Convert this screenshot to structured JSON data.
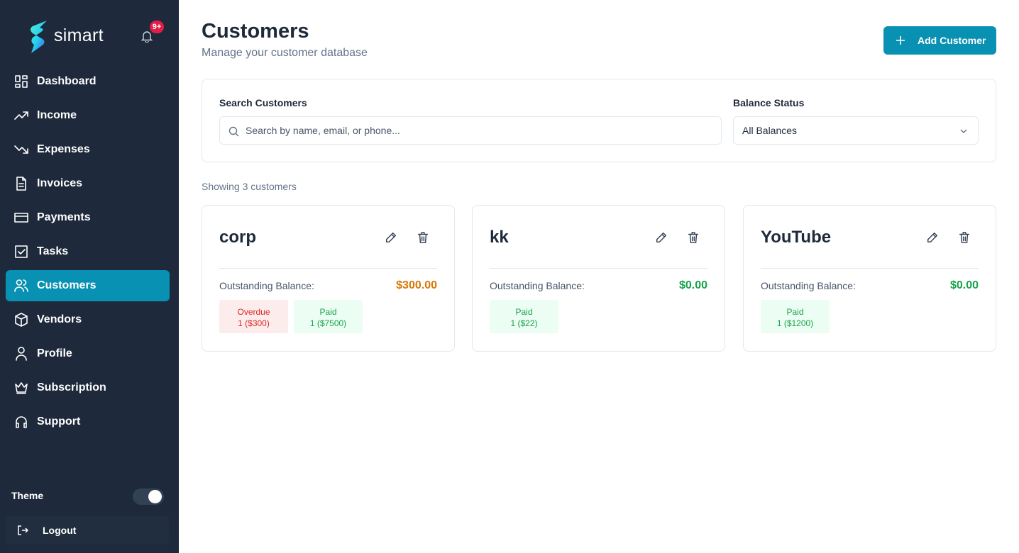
{
  "sidebar": {
    "brand": "simart",
    "badge": "9+",
    "nav": [
      {
        "label": "Dashboard"
      },
      {
        "label": "Income"
      },
      {
        "label": "Expenses"
      },
      {
        "label": "Invoices"
      },
      {
        "label": "Payments"
      },
      {
        "label": "Tasks"
      },
      {
        "label": "Customers",
        "active": true
      },
      {
        "label": "Vendors"
      },
      {
        "label": "Profile"
      },
      {
        "label": "Subscription"
      },
      {
        "label": "Support"
      }
    ],
    "theme_label": "Theme",
    "logout": "Logout"
  },
  "header": {
    "title": "Customers",
    "subtitle": "Manage your customer database",
    "add_button": "Add Customer"
  },
  "filters": {
    "search_label": "Search Customers",
    "search_placeholder": "Search by name, email, or phone...",
    "balance_label": "Balance Status",
    "balance_value": "All Balances"
  },
  "summary": "Showing 3 customers",
  "customers": [
    {
      "name": "corp",
      "balance_label": "Outstanding Balance:",
      "balance": "$300.00",
      "balance_tone": "orange",
      "badges": [
        {
          "status": "Overdue",
          "detail": "1 ($300)",
          "tone": "red"
        },
        {
          "status": "Paid",
          "detail": "1 ($7500)",
          "tone": "green"
        }
      ]
    },
    {
      "name": "kk",
      "balance_label": "Outstanding Balance:",
      "balance": "$0.00",
      "balance_tone": "green",
      "badges": [
        {
          "status": "Paid",
          "detail": "1 ($22)",
          "tone": "green"
        }
      ]
    },
    {
      "name": "YouTube",
      "balance_label": "Outstanding Balance:",
      "balance": "$0.00",
      "balance_tone": "green",
      "badges": [
        {
          "status": "Paid",
          "detail": "1 ($1200)",
          "tone": "green"
        }
      ]
    }
  ]
}
